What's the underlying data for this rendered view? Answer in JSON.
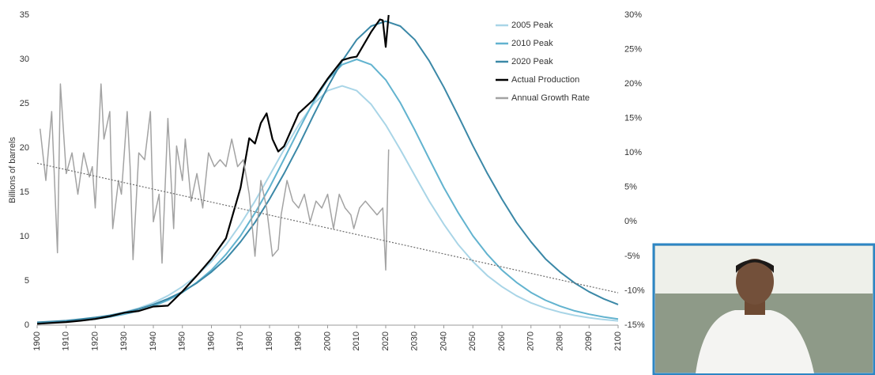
{
  "chart_data": {
    "type": "line",
    "y_label": "Billions of barrels",
    "x": [
      1900,
      1905,
      1910,
      1915,
      1920,
      1925,
      1930,
      1935,
      1940,
      1945,
      1950,
      1955,
      1960,
      1965,
      1970,
      1975,
      1980,
      1985,
      1990,
      1995,
      2000,
      2005,
      2010,
      2015,
      2020,
      2025,
      2030,
      2035,
      2040,
      2045,
      2050,
      2055,
      2060,
      2065,
      2070,
      2075,
      2080,
      2085,
      2090,
      2095,
      2100
    ],
    "series": [
      {
        "name": "2005 Peak",
        "color": "#a9d5e7",
        "values": [
          0.27,
          0.36,
          0.48,
          0.63,
          0.84,
          1.11,
          1.46,
          1.93,
          2.52,
          3.32,
          4.35,
          5.59,
          7.18,
          9.07,
          11.39,
          13.99,
          16.88,
          19.82,
          22.6,
          24.92,
          26.46,
          27,
          26.46,
          24.92,
          22.6,
          19.82,
          16.88,
          13.99,
          11.39,
          9.07,
          7.18,
          5.59,
          4.35,
          3.32,
          2.52,
          1.93,
          1.46,
          1.11,
          0.84,
          0.63,
          0.48
        ]
      },
      {
        "name": "2010 Peak",
        "color": "#62b3cf",
        "values": [
          0.23,
          0.3,
          0.4,
          0.53,
          0.7,
          0.93,
          1.23,
          1.62,
          2.15,
          2.81,
          3.69,
          4.83,
          6.21,
          7.98,
          10.08,
          12.66,
          15.54,
          18.75,
          22.02,
          25.11,
          27.69,
          29.4,
          30,
          29.4,
          27.69,
          25.11,
          22.02,
          18.75,
          15.54,
          12.66,
          10.08,
          7.98,
          6.21,
          4.83,
          3.69,
          2.81,
          2.15,
          1.62,
          1.23,
          0.93,
          0.7
        ]
      },
      {
        "name": "2020 Peak",
        "color": "#3b88a7",
        "values": [
          0.32,
          0.41,
          0.52,
          0.68,
          0.87,
          1.11,
          1.42,
          1.82,
          2.33,
          2.97,
          3.77,
          4.77,
          6.0,
          7.48,
          9.4,
          11.59,
          14.23,
          17.12,
          20.24,
          23.6,
          26.86,
          29.81,
          32.21,
          33.75,
          34.3,
          33.75,
          32.21,
          29.81,
          26.86,
          23.6,
          20.24,
          17.12,
          14.23,
          11.59,
          9.4,
          7.48,
          6.0,
          4.77,
          3.77,
          2.97,
          2.33
        ]
      },
      {
        "name": "Actual Production",
        "color": "#000000",
        "x": [
          1900,
          1905,
          1910,
          1915,
          1920,
          1925,
          1930,
          1935,
          1940,
          1945,
          1950,
          1955,
          1960,
          1965,
          1970,
          1973,
          1975,
          1977,
          1979,
          1981,
          1983,
          1985,
          1990,
          1995,
          2000,
          2005,
          2008,
          2010,
          2015,
          2018,
          2019,
          2020,
          2021
        ],
        "values": [
          0.15,
          0.25,
          0.35,
          0.5,
          0.7,
          1.0,
          1.4,
          1.6,
          2.1,
          2.2,
          3.8,
          5.6,
          7.5,
          9.8,
          15.5,
          21.1,
          20.5,
          22.8,
          23.9,
          21.0,
          19.6,
          20.2,
          23.9,
          25.4,
          27.8,
          29.9,
          30.2,
          30.3,
          33.1,
          34.5,
          34.4,
          31.4,
          35.0
        ]
      },
      {
        "name": "Annual Growth Rate",
        "color": "#a3a3a3",
        "axis": "y2",
        "x": [
          1901,
          1903,
          1905,
          1907,
          1908,
          1910,
          1912,
          1914,
          1916,
          1918,
          1919,
          1920,
          1922,
          1923,
          1925,
          1926,
          1928,
          1929,
          1931,
          1932,
          1933,
          1935,
          1937,
          1939,
          1940,
          1942,
          1943,
          1945,
          1947,
          1948,
          1950,
          1951,
          1953,
          1955,
          1957,
          1959,
          1961,
          1963,
          1965,
          1967,
          1969,
          1971,
          1973,
          1975,
          1977,
          1979,
          1981,
          1983,
          1984,
          1986,
          1988,
          1990,
          1992,
          1994,
          1996,
          1998,
          2000,
          2002,
          2004,
          2006,
          2008,
          2009,
          2011,
          2013,
          2015,
          2017,
          2019,
          2020,
          2021
        ],
        "values": [
          13.5,
          6,
          16,
          -4.5,
          20,
          7,
          10,
          4,
          10,
          6.5,
          8,
          2,
          20,
          12,
          16,
          -1,
          6,
          4,
          16,
          8,
          -5.5,
          10,
          9,
          16,
          0,
          4,
          -6,
          15,
          -1,
          11,
          6,
          12,
          3,
          7,
          2,
          10,
          8,
          9,
          8,
          12,
          8,
          9,
          4,
          -5,
          6,
          2,
          -5,
          -4,
          1,
          6,
          3,
          2,
          4,
          0,
          3,
          2,
          4,
          -1,
          4,
          2,
          1,
          -1,
          2,
          3,
          2,
          1,
          2,
          -7,
          10.5
        ]
      }
    ],
    "trend": {
      "x": [
        1900,
        2100
      ],
      "values": [
        8.5,
        -10.3
      ],
      "axis": "y2",
      "color": "#6e6e6e"
    },
    "xlim": [
      1900,
      2100
    ],
    "xticks": [
      1900,
      1910,
      1920,
      1930,
      1940,
      1950,
      1960,
      1970,
      1980,
      1990,
      2000,
      2010,
      2020,
      2030,
      2040,
      2050,
      2060,
      2070,
      2080,
      2090,
      2100
    ],
    "ylim": [
      0,
      35
    ],
    "yticks": [
      0,
      5,
      10,
      15,
      20,
      25,
      30,
      35
    ],
    "y2lim": [
      -15,
      30
    ],
    "y2ticks": [
      {
        "value": -15,
        "label": "-15%"
      },
      {
        "value": -10,
        "label": "-10%"
      },
      {
        "value": -5,
        "label": "-5%"
      },
      {
        "value": 0,
        "label": "0%"
      },
      {
        "value": 5,
        "label": "5%"
      },
      {
        "value": 10,
        "label": "10%"
      },
      {
        "value": 15,
        "label": "15%"
      },
      {
        "value": 20,
        "label": "20%"
      },
      {
        "value": 25,
        "label": "25%"
      },
      {
        "value": 30,
        "label": "30%"
      }
    ],
    "legend": "top-right"
  }
}
